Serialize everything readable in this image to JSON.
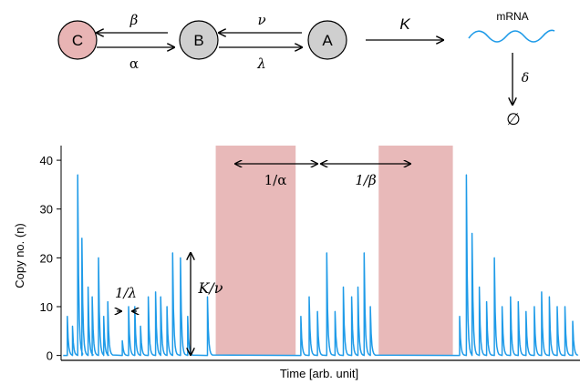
{
  "scheme": {
    "states": [
      {
        "label": "C",
        "color": "#e8b4b4"
      },
      {
        "label": "B",
        "color": "#cfcfcf"
      },
      {
        "label": "A",
        "color": "#cfcfcf"
      }
    ],
    "rates": {
      "c_to_b": "β",
      "b_to_c": "α",
      "b_to_a": "ν",
      "a_to_b": "λ",
      "production": "K",
      "degradation": "δ"
    },
    "mrna_label": "mRNA",
    "degraded_symbol": "∅",
    "mrna_color": "#1f9be8"
  },
  "chart_data": {
    "type": "line",
    "ylabel": "Copy no. (n)",
    "xlabel": "Time [arb. unit]",
    "yticks": [
      0,
      10,
      20,
      30,
      40
    ],
    "ylim": [
      -1,
      43
    ],
    "xlim": [
      0,
      1
    ],
    "series_color": "#1f9be8",
    "shade_color": "#e8b9b9",
    "shaded_intervals": [
      [
        0.298,
        0.452
      ],
      [
        0.612,
        0.755
      ]
    ],
    "spikes": [
      [
        0.012,
        8
      ],
      [
        0.022,
        6
      ],
      [
        0.032,
        37
      ],
      [
        0.04,
        24
      ],
      [
        0.052,
        14
      ],
      [
        0.06,
        12
      ],
      [
        0.072,
        20
      ],
      [
        0.082,
        8
      ],
      [
        0.09,
        11
      ],
      [
        0.118,
        3
      ],
      [
        0.13,
        10
      ],
      [
        0.142,
        10
      ],
      [
        0.153,
        6
      ],
      [
        0.168,
        12
      ],
      [
        0.182,
        13
      ],
      [
        0.192,
        12
      ],
      [
        0.204,
        10
      ],
      [
        0.215,
        21
      ],
      [
        0.23,
        20
      ],
      [
        0.244,
        8
      ],
      [
        0.282,
        12
      ],
      [
        0.462,
        8
      ],
      [
        0.478,
        12
      ],
      [
        0.494,
        9
      ],
      [
        0.512,
        21
      ],
      [
        0.528,
        9
      ],
      [
        0.544,
        14
      ],
      [
        0.56,
        12
      ],
      [
        0.572,
        14
      ],
      [
        0.584,
        21
      ],
      [
        0.596,
        10
      ],
      [
        0.768,
        8
      ],
      [
        0.781,
        37
      ],
      [
        0.792,
        25
      ],
      [
        0.806,
        14
      ],
      [
        0.82,
        11
      ],
      [
        0.835,
        20
      ],
      [
        0.85,
        10
      ],
      [
        0.866,
        12
      ],
      [
        0.881,
        11
      ],
      [
        0.896,
        9
      ],
      [
        0.912,
        10
      ],
      [
        0.926,
        13
      ],
      [
        0.941,
        12
      ],
      [
        0.956,
        10
      ],
      [
        0.971,
        10
      ],
      [
        0.986,
        7
      ]
    ],
    "annotations": {
      "alpha_interval": "1/α",
      "beta_interval": "1/β",
      "lambda_interval": "1/λ",
      "amplitude": "K/ν"
    }
  }
}
